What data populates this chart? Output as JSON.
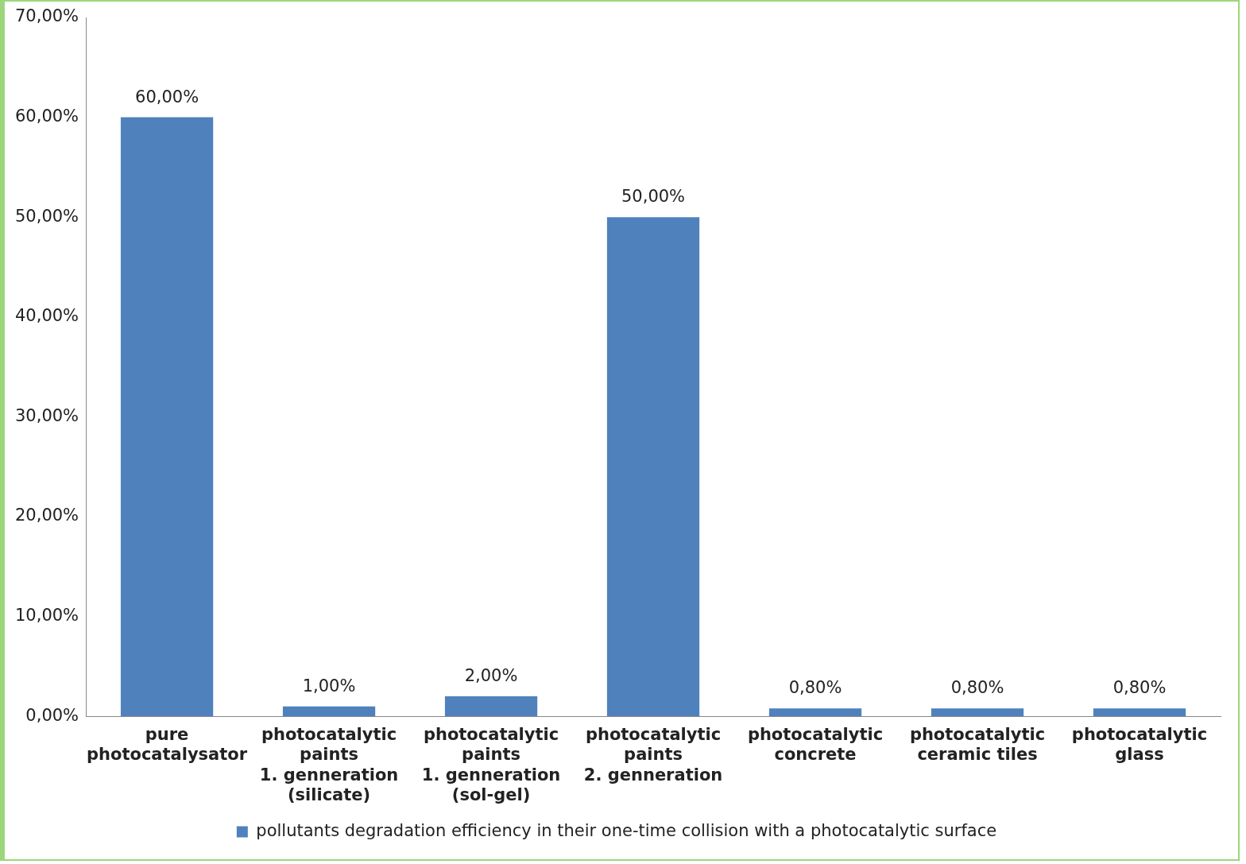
{
  "chart_data": {
    "type": "bar",
    "categories": [
      "pure\nphotocatalysator",
      "photocatalytic\npaints\n1. genneration\n(silicate)",
      "photocatalytic\npaints\n1. genneration\n(sol-gel)",
      "photocatalytic\npaints\n2. genneration",
      "photocatalytic\nconcrete",
      "photocatalytic\nceramic tiles",
      "photocatalytic\nglass"
    ],
    "series": [
      {
        "name": "pollutants degradation efficiency in their one-time collision with a photocatalytic surface",
        "color": "#4f81bd",
        "values": [
          60,
          1,
          2,
          50,
          0.8,
          0.8,
          0.8
        ],
        "value_labels": [
          "60,00%",
          "1,00%",
          "2,00%",
          "50,00%",
          "0,80%",
          "0,80%",
          "0,80%"
        ]
      }
    ],
    "ylim": [
      0,
      70
    ],
    "yticks": [
      {
        "value": 0,
        "label": "0,00%"
      },
      {
        "value": 10,
        "label": "10,00%"
      },
      {
        "value": 20,
        "label": "20,00%"
      },
      {
        "value": 30,
        "label": "30,00%"
      },
      {
        "value": 40,
        "label": "40,00%"
      },
      {
        "value": 50,
        "label": "50,00%"
      },
      {
        "value": 60,
        "label": "60,00%"
      },
      {
        "value": 70,
        "label": "70,00%"
      }
    ],
    "grid": false,
    "legend": "bottom"
  }
}
